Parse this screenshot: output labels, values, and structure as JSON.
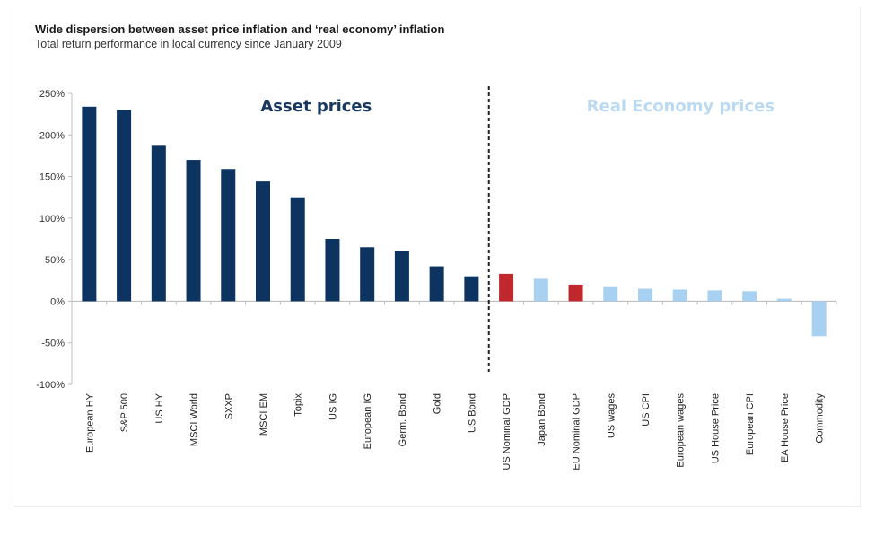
{
  "header": {
    "title": "Wide dispersion between asset price inflation and ‘real economy’ inflation",
    "subtitle": "Total return performance in local currency since January 2009"
  },
  "colors": {
    "asset": "#0d3461",
    "real_highlight": "#c0282d",
    "real": "#a8d0f0",
    "asset_label": "#17375e",
    "real_label": "#bcd9f2",
    "axis": "#bfbfbf",
    "divider": "#222222"
  },
  "chart_data": {
    "type": "bar",
    "title": "Wide dispersion between asset price inflation and ‘real economy’ inflation",
    "subtitle": "Total return performance in local currency since January 2009",
    "xlabel": "",
    "ylabel": "",
    "ylim": [
      -100,
      250
    ],
    "yticks": [
      250,
      200,
      150,
      100,
      50,
      0,
      -50,
      -100
    ],
    "ytick_labels": [
      "250%",
      "200%",
      "150%",
      "100%",
      "50%",
      "0%",
      "-50%",
      "-100%"
    ],
    "grid": false,
    "legend": "none",
    "categories": [
      "European HY",
      "S&P 500",
      "US HY",
      "MSCI World",
      "SXXP",
      "MSCI EM",
      "Topix",
      "US IG",
      "European IG",
      "Germ. Bond",
      "Gold",
      "US Bond",
      "US Nominal GDP",
      "Japan Bond",
      "EU Nominal GDP",
      "US wages",
      "US CPI",
      "European wages",
      "US House Price",
      "European CPI",
      "EA House Price",
      "Commodity"
    ],
    "values": [
      234,
      230,
      187,
      170,
      159,
      144,
      125,
      75,
      65,
      60,
      42,
      30,
      33,
      27,
      20,
      17,
      15,
      14,
      13,
      12,
      3,
      -42
    ],
    "groups": [
      "asset",
      "asset",
      "asset",
      "asset",
      "asset",
      "asset",
      "asset",
      "asset",
      "asset",
      "asset",
      "asset",
      "asset",
      "real_highlight",
      "real",
      "real_highlight",
      "real",
      "real",
      "real",
      "real",
      "real",
      "real",
      "real"
    ],
    "annotations": [
      {
        "text": "Asset prices",
        "region": "left"
      },
      {
        "text": "Real Economy prices",
        "region": "right"
      }
    ],
    "divider_after_category": "US Bond",
    "divider_style": "dashed"
  }
}
